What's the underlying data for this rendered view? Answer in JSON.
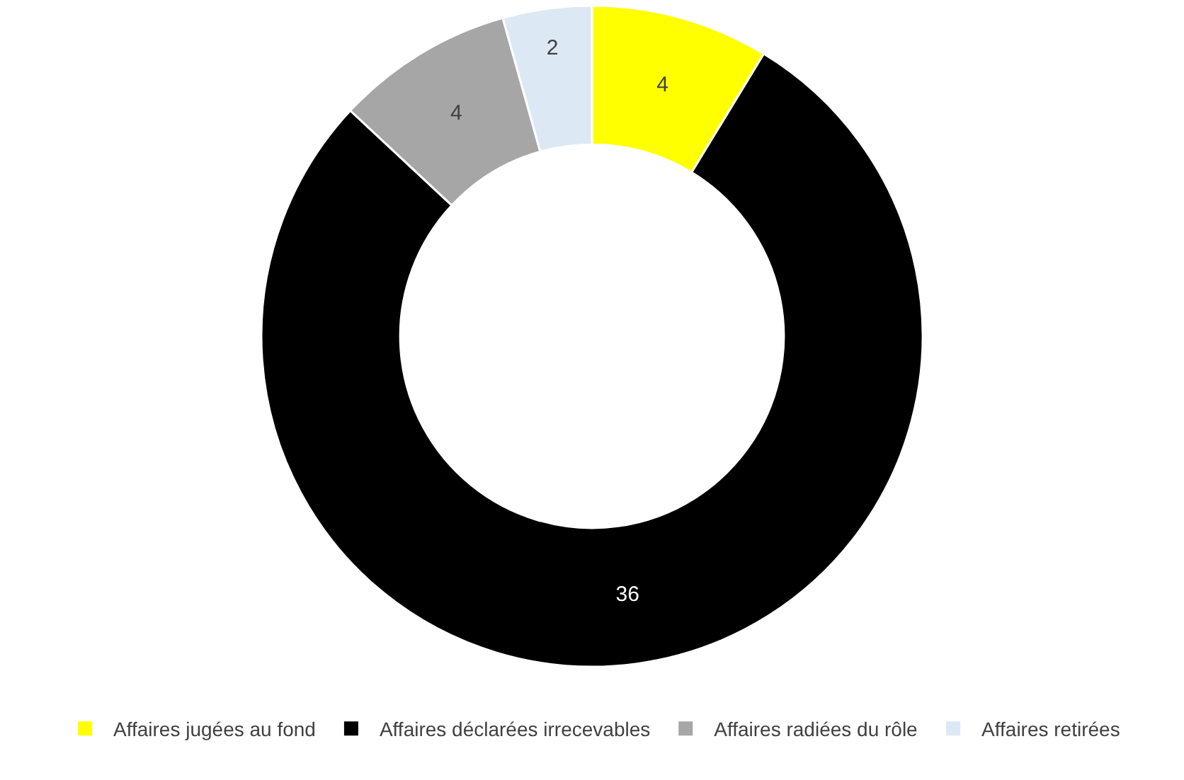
{
  "chart_data": {
    "type": "donut",
    "categories": [
      "Affaires jugées au fond",
      "Affaires déclarées irrecevables",
      "Affaires radiées du rôle",
      "Affaires retirées"
    ],
    "values": [
      4,
      36,
      4,
      2
    ],
    "colors": [
      "#ffff00",
      "#000000",
      "#a6a6a6",
      "#dde8f5"
    ],
    "data_labels": true,
    "legend": "bottom"
  }
}
